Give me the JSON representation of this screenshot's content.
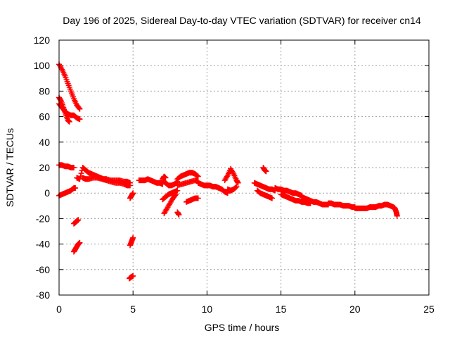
{
  "chart_data": {
    "type": "scatter",
    "title": "Day 196 of 2025, Sidereal Day-to-day VTEC variation (SDTVAR) for receiver cn14",
    "xlabel": "GPS time / hours",
    "ylabel": "SDTVAR / TECUs",
    "xlim": [
      0,
      25
    ],
    "ylim": [
      -80,
      120
    ],
    "xticks": [
      0,
      5,
      10,
      15,
      20,
      25
    ],
    "yticks": [
      -80,
      -60,
      -40,
      -20,
      0,
      20,
      40,
      60,
      80,
      100,
      120
    ],
    "grid": true,
    "marker": "plus",
    "color": "#ff0000",
    "series": [
      {
        "name": "arc-high-1",
        "points": [
          [
            0.0,
            101
          ],
          [
            0.2,
            97
          ],
          [
            0.4,
            92
          ],
          [
            0.6,
            86
          ],
          [
            0.8,
            80
          ],
          [
            1.0,
            74
          ],
          [
            1.2,
            69
          ],
          [
            1.4,
            66
          ]
        ]
      },
      {
        "name": "arc-high-2",
        "points": [
          [
            0.0,
            75
          ],
          [
            0.15,
            72
          ],
          [
            0.3,
            67
          ],
          [
            0.45,
            62
          ],
          [
            0.6,
            57
          ],
          [
            0.7,
            56
          ]
        ]
      },
      {
        "name": "arc-high-3",
        "points": [
          [
            0.0,
            70
          ],
          [
            0.2,
            67
          ],
          [
            0.4,
            64
          ],
          [
            0.6,
            62
          ],
          [
            0.8,
            61
          ],
          [
            1.0,
            61
          ],
          [
            1.2,
            59
          ],
          [
            1.4,
            58
          ]
        ]
      },
      {
        "name": "arc-22",
        "points": [
          [
            0.0,
            22
          ],
          [
            0.2,
            22
          ],
          [
            0.4,
            21
          ],
          [
            0.6,
            21
          ],
          [
            0.8,
            20
          ],
          [
            1.0,
            20
          ]
        ]
      },
      {
        "name": "arc-zero-rise",
        "points": [
          [
            0.0,
            -2
          ],
          [
            0.2,
            -1
          ],
          [
            0.4,
            0
          ],
          [
            0.6,
            1
          ],
          [
            0.8,
            2
          ],
          [
            1.0,
            4
          ],
          [
            1.1,
            4
          ]
        ]
      },
      {
        "name": "arc-neg-20",
        "points": [
          [
            1.0,
            -24
          ],
          [
            1.1,
            -23
          ],
          [
            1.2,
            -22
          ],
          [
            1.3,
            -21
          ]
        ]
      },
      {
        "name": "arc-neg-40",
        "points": [
          [
            1.0,
            -46
          ],
          [
            1.1,
            -44
          ],
          [
            1.2,
            -42
          ],
          [
            1.3,
            -40
          ],
          [
            1.4,
            -39
          ]
        ]
      },
      {
        "name": "arc-main-1",
        "points": [
          [
            1.2,
            12
          ],
          [
            1.4,
            11
          ],
          [
            1.6,
            20
          ],
          [
            1.8,
            18
          ],
          [
            2.0,
            16
          ],
          [
            2.2,
            15
          ],
          [
            2.4,
            14
          ],
          [
            2.6,
            13
          ],
          [
            2.8,
            12
          ],
          [
            3.0,
            11
          ],
          [
            3.2,
            11
          ],
          [
            3.5,
            10
          ],
          [
            3.8,
            10
          ],
          [
            4.1,
            10
          ],
          [
            4.4,
            9
          ],
          [
            4.6,
            9
          ],
          [
            4.8,
            8
          ]
        ]
      },
      {
        "name": "arc-main-2",
        "points": [
          [
            1.6,
            12
          ],
          [
            1.8,
            11
          ],
          [
            2.0,
            11
          ],
          [
            2.3,
            12
          ],
          [
            2.6,
            12
          ],
          [
            2.9,
            11
          ],
          [
            3.2,
            10
          ],
          [
            3.5,
            9
          ],
          [
            3.8,
            8
          ],
          [
            4.1,
            8
          ],
          [
            4.4,
            7
          ],
          [
            4.6,
            6
          ],
          [
            4.8,
            6
          ]
        ]
      },
      {
        "name": "arc-5-dip",
        "points": [
          [
            4.8,
            -4
          ],
          [
            4.9,
            -2
          ],
          [
            5.0,
            0
          ]
        ]
      },
      {
        "name": "arc-5-neg35",
        "points": [
          [
            4.8,
            -41
          ],
          [
            4.9,
            -38
          ],
          [
            5.0,
            -35
          ]
        ]
      },
      {
        "name": "arc-5-neg66",
        "points": [
          [
            4.75,
            -67
          ],
          [
            4.85,
            -66
          ],
          [
            5.0,
            -65
          ]
        ]
      },
      {
        "name": "arc-6",
        "points": [
          [
            5.4,
            10
          ],
          [
            5.6,
            10
          ],
          [
            5.8,
            10
          ],
          [
            6.0,
            11
          ],
          [
            6.2,
            10
          ],
          [
            6.4,
            9
          ],
          [
            6.6,
            8
          ],
          [
            6.8,
            8
          ],
          [
            7.0,
            7
          ]
        ]
      },
      {
        "name": "arc-7-fall",
        "points": [
          [
            7.0,
            10
          ],
          [
            7.2,
            8
          ],
          [
            7.4,
            6
          ],
          [
            7.6,
            6
          ],
          [
            7.8,
            7
          ],
          [
            8.0,
            9
          ]
        ]
      },
      {
        "name": "arc-7-up",
        "points": [
          [
            7.0,
            11
          ],
          [
            7.1,
            13
          ],
          [
            7.2,
            12
          ]
        ]
      },
      {
        "name": "arc-7-neg",
        "points": [
          [
            7.1,
            -16
          ],
          [
            7.3,
            -12
          ],
          [
            7.5,
            -8
          ],
          [
            7.7,
            -4
          ],
          [
            7.9,
            -1
          ]
        ]
      },
      {
        "name": "arc-7-rise",
        "points": [
          [
            7.0,
            -5
          ],
          [
            7.2,
            -3
          ],
          [
            7.4,
            -1
          ],
          [
            7.6,
            0
          ],
          [
            7.8,
            1
          ],
          [
            8.0,
            2
          ]
        ]
      },
      {
        "name": "arc-8-neg",
        "points": [
          [
            8.0,
            -15
          ],
          [
            8.1,
            -17
          ]
        ]
      },
      {
        "name": "arc-9-high",
        "points": [
          [
            8.0,
            11
          ],
          [
            8.2,
            13
          ],
          [
            8.4,
            14
          ],
          [
            8.6,
            15
          ],
          [
            8.8,
            16
          ],
          [
            9.0,
            16
          ],
          [
            9.2,
            15
          ],
          [
            9.4,
            13
          ]
        ]
      },
      {
        "name": "arc-9-mid",
        "points": [
          [
            8.0,
            6
          ],
          [
            8.3,
            7
          ],
          [
            8.6,
            8
          ],
          [
            8.9,
            9
          ],
          [
            9.2,
            10
          ],
          [
            9.4,
            9
          ]
        ]
      },
      {
        "name": "arc-9-neg",
        "points": [
          [
            8.6,
            -7
          ],
          [
            8.8,
            -6
          ],
          [
            9.0,
            -5
          ],
          [
            9.2,
            -4
          ],
          [
            9.4,
            -4
          ]
        ]
      },
      {
        "name": "arc-10",
        "points": [
          [
            9.4,
            8
          ],
          [
            9.6,
            7
          ],
          [
            9.8,
            6
          ],
          [
            10.0,
            6
          ],
          [
            10.2,
            6
          ],
          [
            10.4,
            5
          ],
          [
            10.6,
            5
          ],
          [
            10.8,
            4
          ],
          [
            11.0,
            3
          ],
          [
            11.2,
            1
          ],
          [
            11.4,
            0
          ]
        ]
      },
      {
        "name": "arc-11-spike",
        "points": [
          [
            11.2,
            10
          ],
          [
            11.4,
            14
          ],
          [
            11.6,
            19
          ],
          [
            11.8,
            15
          ],
          [
            12.0,
            10
          ],
          [
            12.1,
            8
          ]
        ]
      },
      {
        "name": "arc-11-low",
        "points": [
          [
            11.4,
            3
          ],
          [
            11.6,
            2
          ],
          [
            11.8,
            3
          ],
          [
            12.0,
            5
          ]
        ]
      },
      {
        "name": "arc-13-spike",
        "points": [
          [
            13.8,
            20
          ],
          [
            13.9,
            18
          ],
          [
            14.0,
            17
          ]
        ]
      },
      {
        "name": "arc-13",
        "points": [
          [
            13.2,
            8
          ],
          [
            13.4,
            7
          ],
          [
            13.6,
            6
          ],
          [
            13.8,
            5
          ],
          [
            14.0,
            4
          ],
          [
            14.2,
            3
          ],
          [
            14.4,
            3
          ],
          [
            14.6,
            2
          ]
        ]
      },
      {
        "name": "arc-13-low",
        "points": [
          [
            13.4,
            2
          ],
          [
            13.6,
            0
          ],
          [
            13.8,
            -1
          ],
          [
            14.0,
            -2
          ],
          [
            14.2,
            -3
          ],
          [
            14.4,
            -4
          ]
        ]
      },
      {
        "name": "arc-15",
        "points": [
          [
            14.6,
            4
          ],
          [
            14.8,
            3
          ],
          [
            15.0,
            3
          ],
          [
            15.2,
            2
          ],
          [
            15.4,
            2
          ],
          [
            15.6,
            1
          ],
          [
            15.8,
            0
          ],
          [
            16.0,
            0
          ],
          [
            16.2,
            -1
          ],
          [
            16.4,
            -2
          ]
        ]
      },
      {
        "name": "arc-16",
        "points": [
          [
            15.0,
            -1
          ],
          [
            15.2,
            -2
          ],
          [
            15.4,
            -3
          ],
          [
            15.6,
            -4
          ],
          [
            15.8,
            -5
          ],
          [
            16.0,
            -6
          ],
          [
            16.2,
            -6
          ],
          [
            16.4,
            -7
          ],
          [
            16.6,
            -7
          ],
          [
            16.8,
            -8
          ],
          [
            17.0,
            -8
          ]
        ]
      },
      {
        "name": "arc-17",
        "points": [
          [
            16.4,
            -3
          ],
          [
            16.6,
            -4
          ],
          [
            16.8,
            -5
          ],
          [
            17.0,
            -6
          ],
          [
            17.2,
            -7
          ],
          [
            17.4,
            -7
          ],
          [
            17.6,
            -8
          ],
          [
            17.8,
            -9
          ],
          [
            18.0,
            -9
          ],
          [
            18.2,
            -9
          ]
        ]
      },
      {
        "name": "arc-19",
        "points": [
          [
            18.2,
            -8
          ],
          [
            18.4,
            -8
          ],
          [
            18.6,
            -9
          ],
          [
            18.8,
            -9
          ],
          [
            19.0,
            -9
          ],
          [
            19.2,
            -10
          ],
          [
            19.4,
            -10
          ],
          [
            19.6,
            -10
          ],
          [
            19.8,
            -11
          ],
          [
            20.0,
            -11
          ]
        ]
      },
      {
        "name": "arc-20",
        "points": [
          [
            20.0,
            -12
          ],
          [
            20.2,
            -12
          ],
          [
            20.4,
            -12
          ],
          [
            20.6,
            -12
          ],
          [
            20.8,
            -12
          ],
          [
            21.0,
            -11
          ],
          [
            21.2,
            -11
          ],
          [
            21.4,
            -11
          ]
        ]
      },
      {
        "name": "arc-22-end",
        "points": [
          [
            21.4,
            -11
          ],
          [
            21.6,
            -10
          ],
          [
            21.8,
            -10
          ],
          [
            22.0,
            -9
          ],
          [
            22.2,
            -9
          ],
          [
            22.4,
            -10
          ],
          [
            22.6,
            -11
          ],
          [
            22.7,
            -12
          ],
          [
            22.8,
            -15
          ],
          [
            22.85,
            -18
          ]
        ]
      }
    ]
  }
}
